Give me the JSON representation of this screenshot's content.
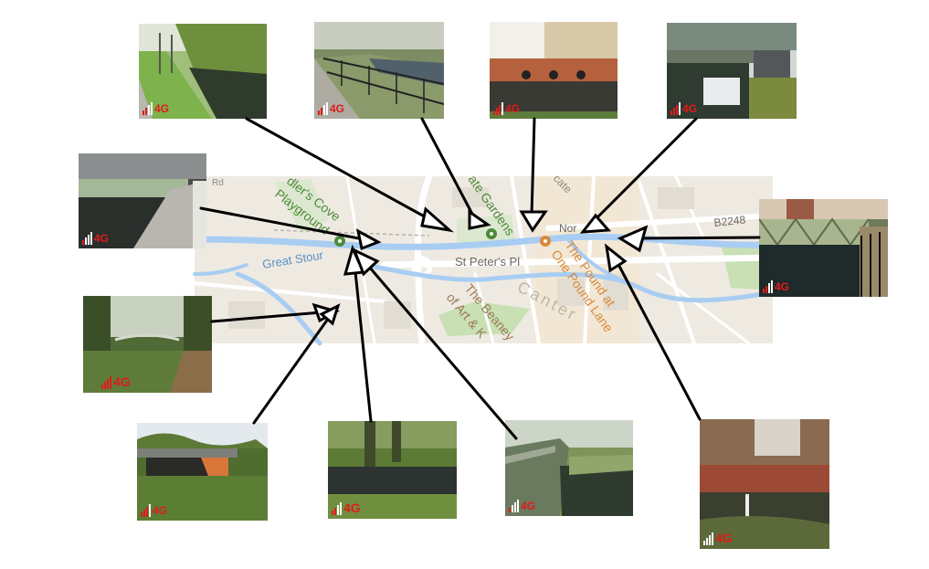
{
  "map": {
    "labels": {
      "great_stour": "Great Stour",
      "cove_playground": [
        "dler's Cove",
        "Playground"
      ],
      "gardens": "ate Gardens",
      "gate": "cate",
      "st_peters": "St Peter's Pl",
      "beaney": [
        "The Beaney",
        "of Art & K"
      ],
      "pound": [
        "The Pound at",
        "One Pound Lane"
      ],
      "canterbury": "Canter",
      "nor": "Nor",
      "road": "B2248",
      "rd": "Rd"
    },
    "colors": {
      "water": "#a9cdf2",
      "land": "#eeeae2",
      "park": "#c8e0b4",
      "roads": "#ffffff",
      "green_label": "#4e8a3a",
      "orange_label": "#d9893a",
      "grey_label": "#8f8a80"
    }
  },
  "photos": [
    {
      "name": "photo-towpath-willows",
      "signal": "4G",
      "icon": "signal-bars-icon"
    },
    {
      "name": "photo-railing-path",
      "signal": "4G",
      "icon": "signal-bars-icon"
    },
    {
      "name": "photo-river-wall",
      "signal": "4G",
      "icon": "signal-bars-icon"
    },
    {
      "name": "photo-footbridge",
      "signal": "4G",
      "icon": "signal-bars-icon"
    },
    {
      "name": "photo-underpass",
      "signal": "4G",
      "icon": "signal-bars-icon"
    },
    {
      "name": "photo-green-bridge",
      "signal": "4G",
      "icon": "signal-bars-icon"
    },
    {
      "name": "photo-woodland-bridge",
      "signal": "4G",
      "icon": "signal-bars-icon"
    },
    {
      "name": "photo-road-bridge",
      "signal": "4G",
      "icon": "signal-bars-icon"
    },
    {
      "name": "photo-riverbank",
      "signal": "4G",
      "icon": "signal-bars-icon"
    },
    {
      "name": "photo-wooden-bridge",
      "signal": "4G",
      "icon": "signal-bars-icon"
    },
    {
      "name": "photo-weir",
      "signal": "4G",
      "icon": "signal-bars-icon"
    }
  ],
  "signal_color": "#e01b1b",
  "arrow_color": "#000000"
}
